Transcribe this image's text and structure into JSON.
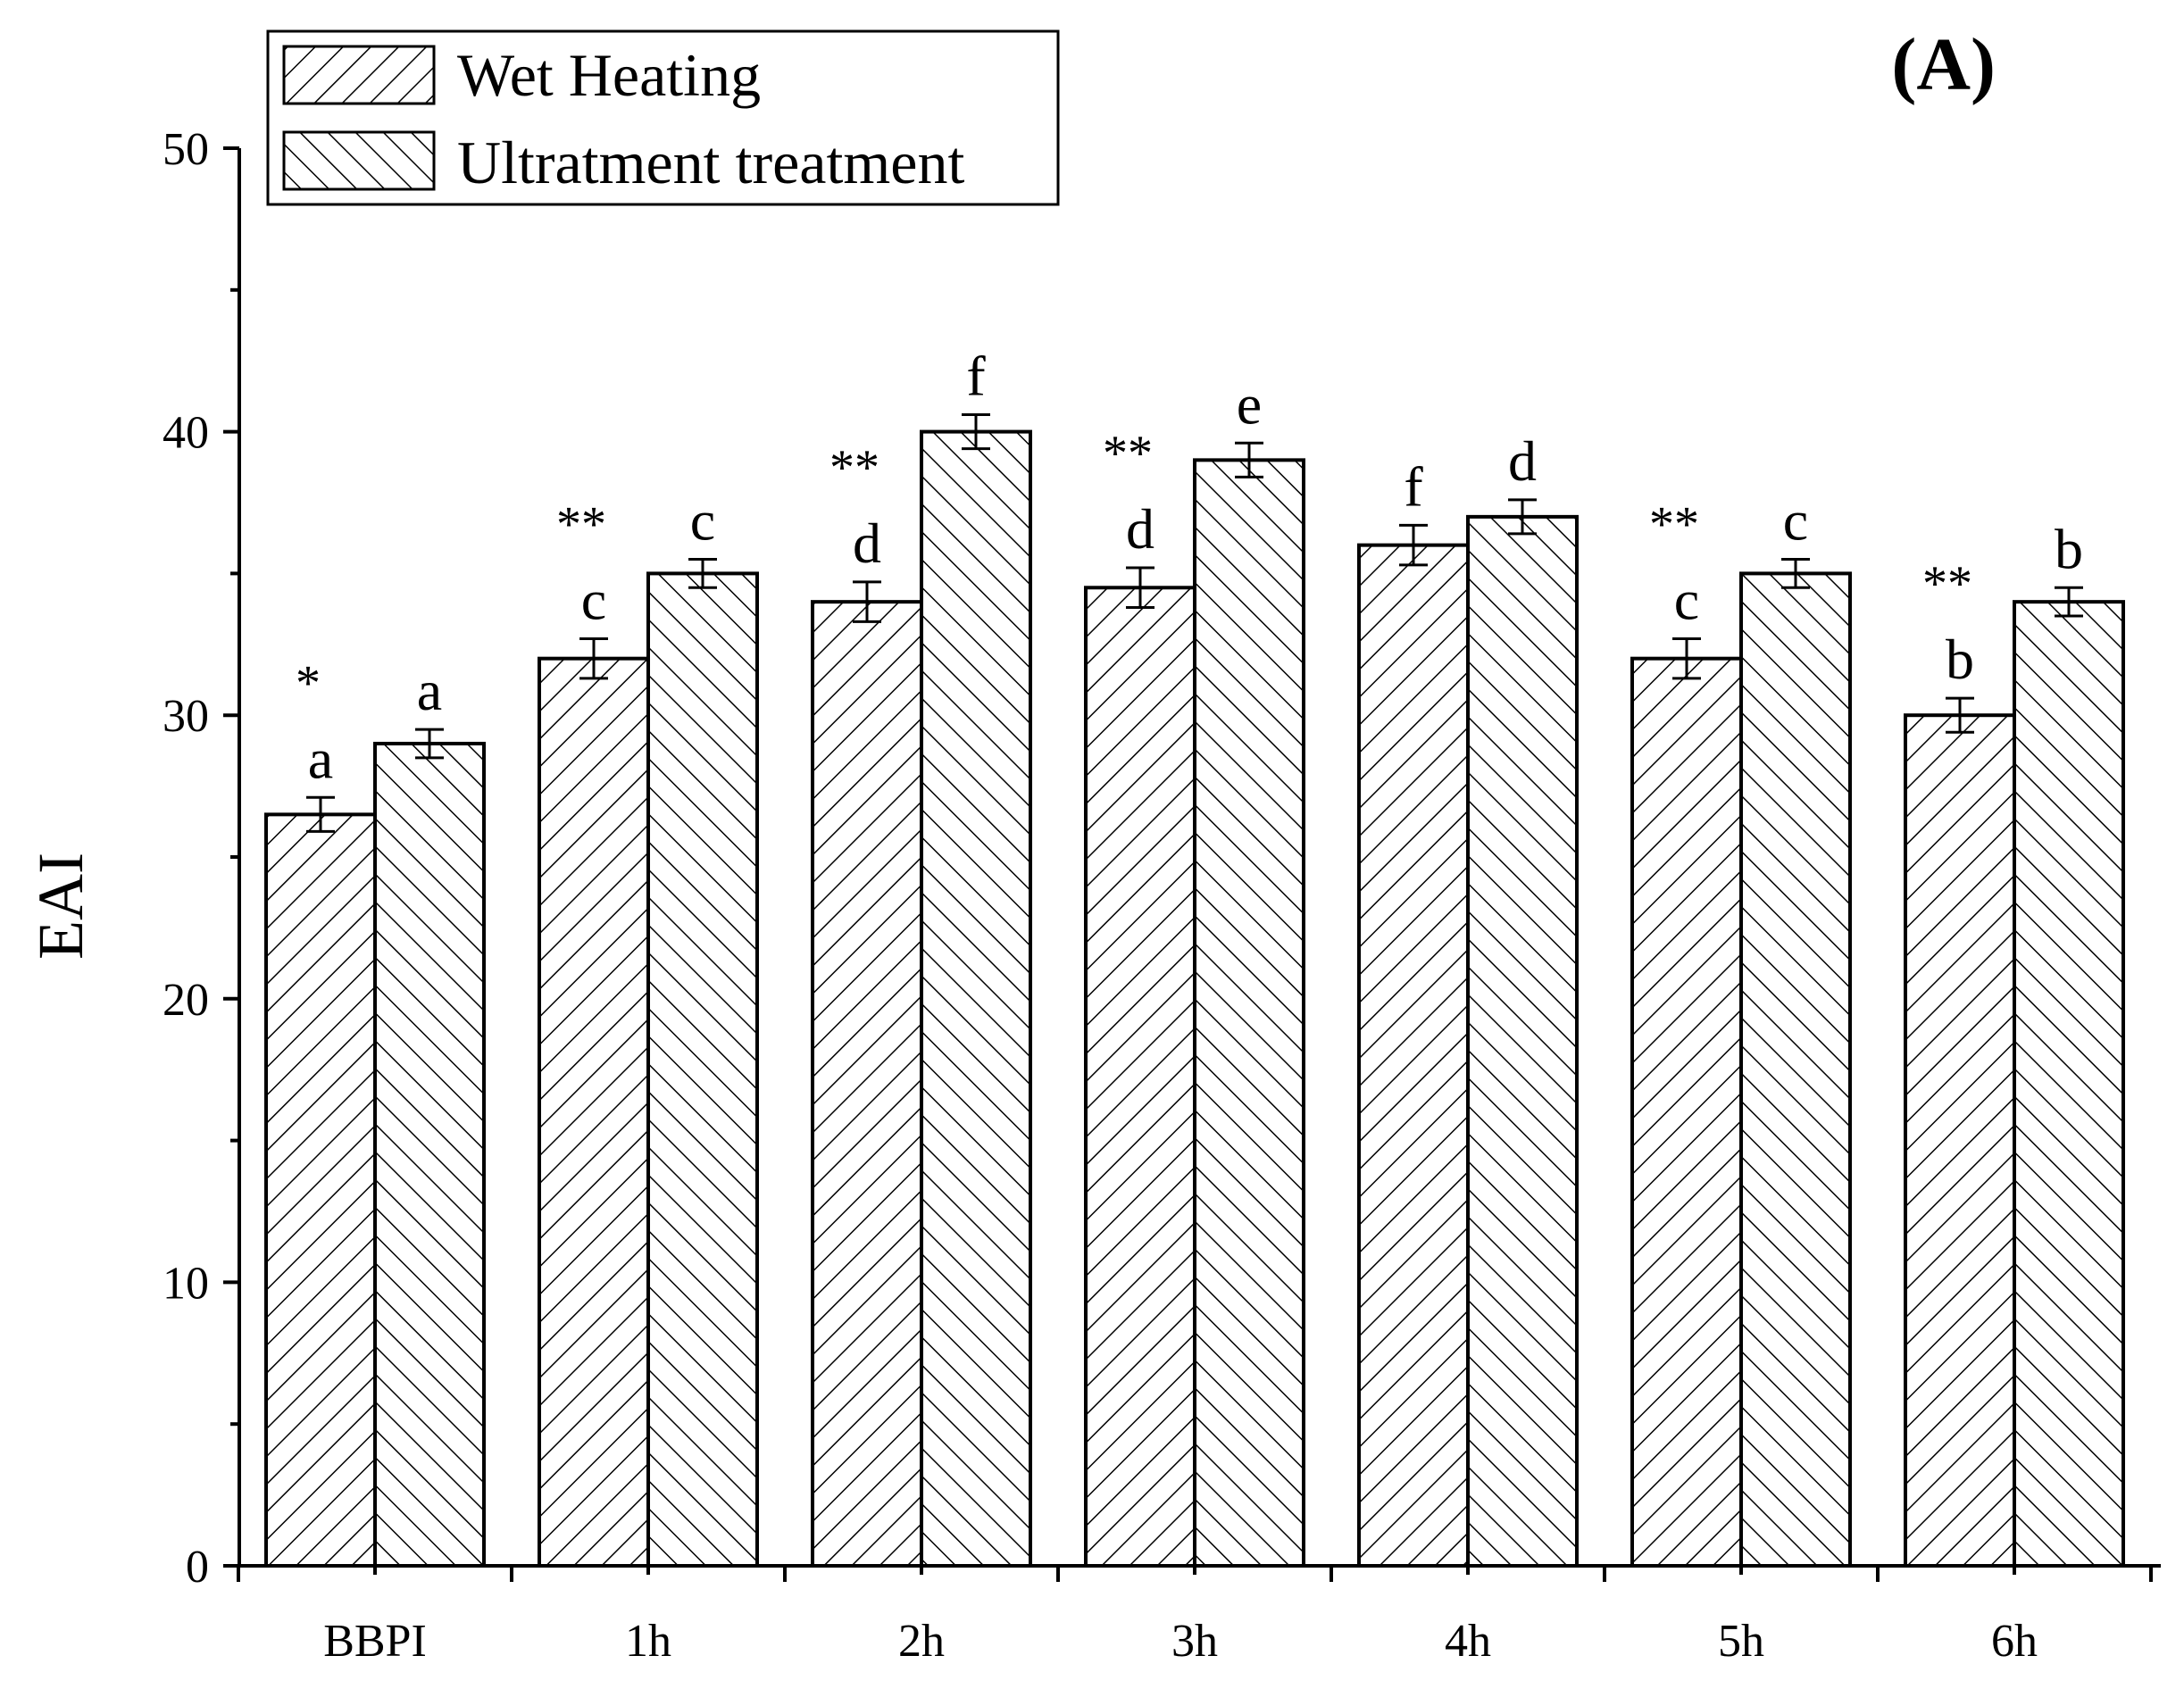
{
  "chart_data": {
    "type": "bar",
    "panel_label": "(A)",
    "ylabel": "EAI",
    "xlabel": "",
    "ylim": [
      0,
      50
    ],
    "yticks": [
      0,
      10,
      20,
      30,
      40,
      50
    ],
    "categories": [
      "BBPI",
      "1h",
      "2h",
      "3h",
      "4h",
      "5h",
      "6h"
    ],
    "series": [
      {
        "name": "Wet Heating",
        "pattern": "diag-right",
        "values": [
          26.5,
          32,
          34,
          34.5,
          36,
          32,
          30
        ],
        "errors": [
          0.6,
          0.7,
          0.7,
          0.7,
          0.7,
          0.7,
          0.6
        ],
        "letters": [
          "a",
          "c",
          "d",
          "d",
          "f",
          "c",
          "b"
        ],
        "stars": [
          "*",
          "**",
          "**",
          "**",
          "",
          "**",
          "**"
        ]
      },
      {
        "name": "Ultratment treatment",
        "pattern": "diag-left",
        "values": [
          29,
          35,
          40,
          39,
          37,
          35,
          34
        ],
        "errors": [
          0.5,
          0.5,
          0.6,
          0.6,
          0.6,
          0.5,
          0.5
        ],
        "letters": [
          "a",
          "c",
          "f",
          "e",
          "d",
          "c",
          "b"
        ],
        "stars": [
          "",
          "",
          "",
          "",
          "",
          "",
          ""
        ]
      }
    ],
    "legend_position": "top-left"
  }
}
